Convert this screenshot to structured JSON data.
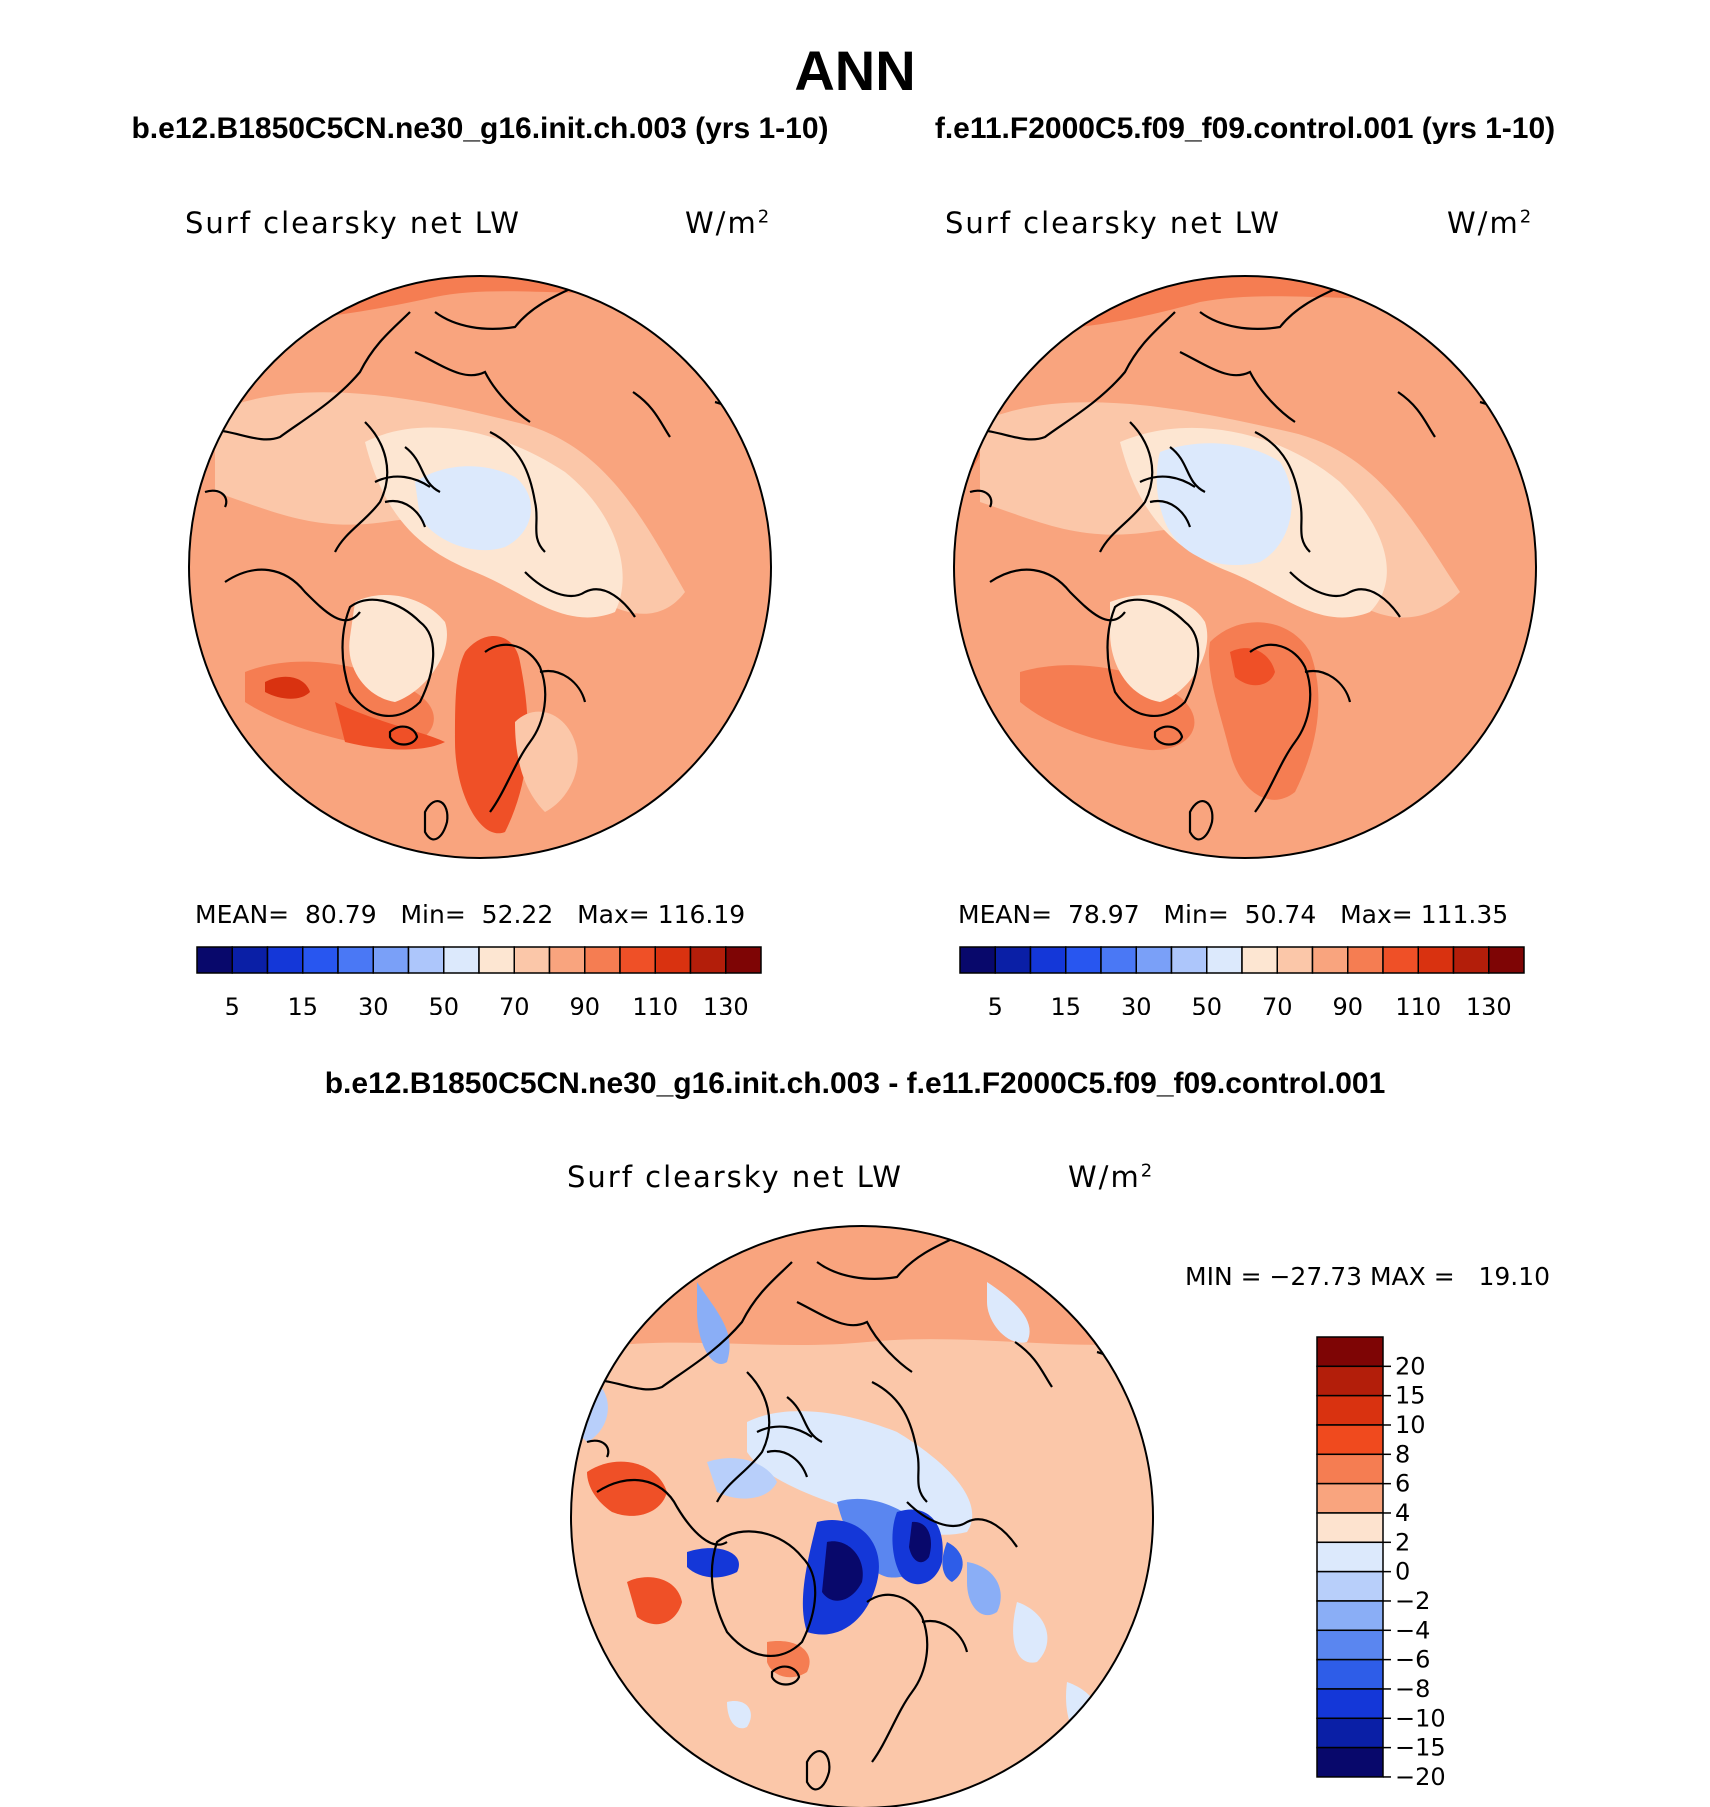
{
  "page_title": "ANN",
  "panels": [
    {
      "case_title": "b.e12.B1850C5CN.ne30_g16.init.ch.003 (yrs 1-10)",
      "variable": "Surf clearsky net LW",
      "units": "W/m",
      "units_sup": "2",
      "stats": {
        "mean_label": "MEAN=",
        "mean": "80.79",
        "min_label": "Min=",
        "min": "52.22",
        "max_label": "Max=",
        "max": "116.19"
      }
    },
    {
      "case_title": "f.e11.F2000C5.f09_f09.control.001 (yrs 1-10)",
      "variable": "Surf clearsky net LW",
      "units": "W/m",
      "units_sup": "2",
      "stats": {
        "mean_label": "MEAN=",
        "mean": "78.97",
        "min_label": "Min=",
        "min": "50.74",
        "max_label": "Max=",
        "max": "111.35"
      }
    }
  ],
  "abs_colorbar": {
    "colors": [
      "#08086b",
      "#0a1fa6",
      "#1437d8",
      "#2856f0",
      "#4a78f5",
      "#7aa0f8",
      "#adc6fb",
      "#dce9fc",
      "#fde6d2",
      "#fbc7a9",
      "#f9a47e",
      "#f57d52",
      "#ef5027",
      "#d93210",
      "#b31e0a",
      "#7e0505"
    ],
    "labels": [
      "5",
      "15",
      "30",
      "50",
      "70",
      "90",
      "110",
      "130"
    ]
  },
  "diff_panel": {
    "title": "b.e12.B1850C5CN.ne30_g16.init.ch.003 - f.e11.F2000C5.f09_f09.control.001",
    "variable": "Surf clearsky net LW",
    "units": "W/m",
    "units_sup": "2",
    "minmax": "MIN = −27.73 MAX =   19.10"
  },
  "diff_colorbar": {
    "colors": [
      "#7e0505",
      "#b31e0a",
      "#d93210",
      "#f04a1e",
      "#f57d52",
      "#f9a47e",
      "#fde3cf",
      "#dce9fc",
      "#b8cffa",
      "#8aaef6",
      "#5a86f0",
      "#2e5de8",
      "#1437d8",
      "#0a1fa6",
      "#08086b"
    ],
    "labels": [
      "20",
      "15",
      "10",
      "8",
      "6",
      "4",
      "2",
      "0",
      "−2",
      "−4",
      "−6",
      "−8",
      "−10",
      "−15",
      "−20"
    ]
  }
}
